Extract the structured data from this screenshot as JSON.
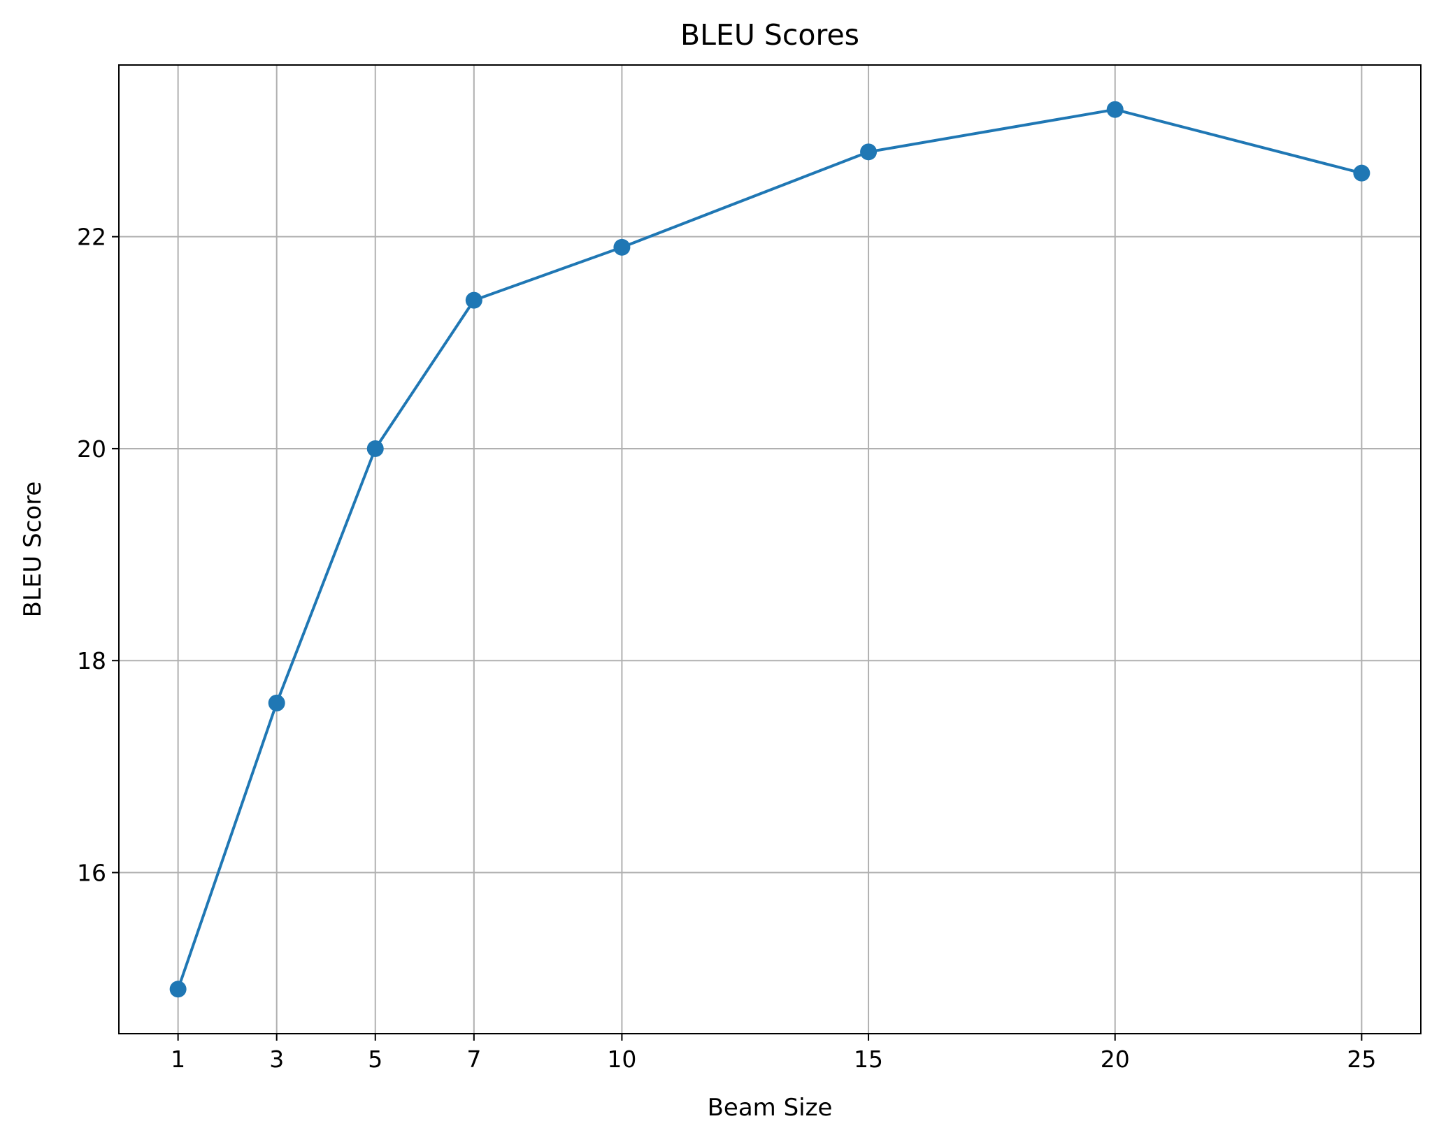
{
  "chart_data": {
    "type": "line",
    "title": "BLEU Scores",
    "xlabel": "Beam Size",
    "ylabel": "BLEU Score",
    "x": [
      1,
      3,
      5,
      7,
      10,
      15,
      20,
      25
    ],
    "series": [
      {
        "values": [
          14.9,
          17.6,
          20.0,
          21.4,
          21.9,
          22.8,
          23.2,
          22.6
        ]
      }
    ],
    "xticks": [
      1,
      3,
      5,
      7,
      10,
      15,
      20,
      25
    ],
    "yticks": [
      16,
      18,
      20,
      22
    ],
    "xlim": [
      -0.2,
      26.2
    ],
    "ylim": [
      14.48,
      23.62
    ],
    "grid": true,
    "legend": "none",
    "colors": {
      "line": "#1f77b4",
      "grid": "#b0b0b0",
      "axes": "#000000"
    }
  }
}
